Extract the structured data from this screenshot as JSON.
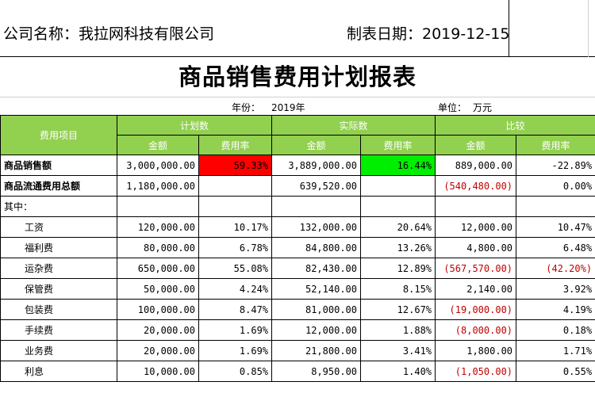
{
  "header": {
    "company": "公司名称：我拉网科技有限公司",
    "date": "制表日期：2019-12-15"
  },
  "title": "商品销售费用计划报表",
  "meta": {
    "year_label": "年份：",
    "year_value": "2019年",
    "unit_label": "单位：",
    "unit_value": "万元"
  },
  "columns": {
    "item": "费用项目",
    "plan": "计划数",
    "actual": "实际数",
    "compare": "比较",
    "amount": "金额",
    "rate": "费用率"
  },
  "rows": [
    {
      "label": "商品销售额",
      "plan_amt": "3,000,000.00",
      "plan_rate": "59.33%",
      "act_amt": "3,889,000.00",
      "act_rate": "16.44%",
      "cmp_amt": "889,000.00",
      "cmp_rate": "-22.89%"
    },
    {
      "label": "商品流通费用总额",
      "plan_amt": "1,180,000.00",
      "plan_rate": "",
      "act_amt": "639,520.00",
      "act_rate": "",
      "cmp_amt": "(540,480.00)",
      "cmp_rate": "0.00%"
    },
    {
      "label": "其中：",
      "plan_amt": "",
      "plan_rate": "",
      "act_amt": "",
      "act_rate": "",
      "cmp_amt": "",
      "cmp_rate": ""
    },
    {
      "label": "工资",
      "plan_amt": "120,000.00",
      "plan_rate": "10.17%",
      "act_amt": "132,000.00",
      "act_rate": "20.64%",
      "cmp_amt": "12,000.00",
      "cmp_rate": "10.47%"
    },
    {
      "label": "福利费",
      "plan_amt": "80,000.00",
      "plan_rate": "6.78%",
      "act_amt": "84,800.00",
      "act_rate": "13.26%",
      "cmp_amt": "4,800.00",
      "cmp_rate": "6.48%"
    },
    {
      "label": "运杂费",
      "plan_amt": "650,000.00",
      "plan_rate": "55.08%",
      "act_amt": "82,430.00",
      "act_rate": "12.89%",
      "cmp_amt": "(567,570.00)",
      "cmp_rate": "(42.20%)"
    },
    {
      "label": "保管费",
      "plan_amt": "50,000.00",
      "plan_rate": "4.24%",
      "act_amt": "52,140.00",
      "act_rate": "8.15%",
      "cmp_amt": "2,140.00",
      "cmp_rate": "3.92%"
    },
    {
      "label": "包装费",
      "plan_amt": "100,000.00",
      "plan_rate": "8.47%",
      "act_amt": "81,000.00",
      "act_rate": "12.67%",
      "cmp_amt": "(19,000.00)",
      "cmp_rate": "4.19%"
    },
    {
      "label": "手续费",
      "plan_amt": "20,000.00",
      "plan_rate": "1.69%",
      "act_amt": "12,000.00",
      "act_rate": "1.88%",
      "cmp_amt": "(8,000.00)",
      "cmp_rate": "0.18%"
    },
    {
      "label": "业务费",
      "plan_amt": "20,000.00",
      "plan_rate": "1.69%",
      "act_amt": "21,800.00",
      "act_rate": "3.41%",
      "cmp_amt": "1,800.00",
      "cmp_rate": "1.71%"
    },
    {
      "label": "利息",
      "plan_amt": "10,000.00",
      "plan_rate": "0.85%",
      "act_amt": "8,950.00",
      "act_rate": "1.40%",
      "cmp_amt": "(1,050.00)",
      "cmp_rate": "0.55%"
    }
  ],
  "colors": {
    "header_green": "#92d050",
    "highlight_red": "#ff0000",
    "highlight_green": "#00ee00",
    "negative_text": "#c00000"
  }
}
